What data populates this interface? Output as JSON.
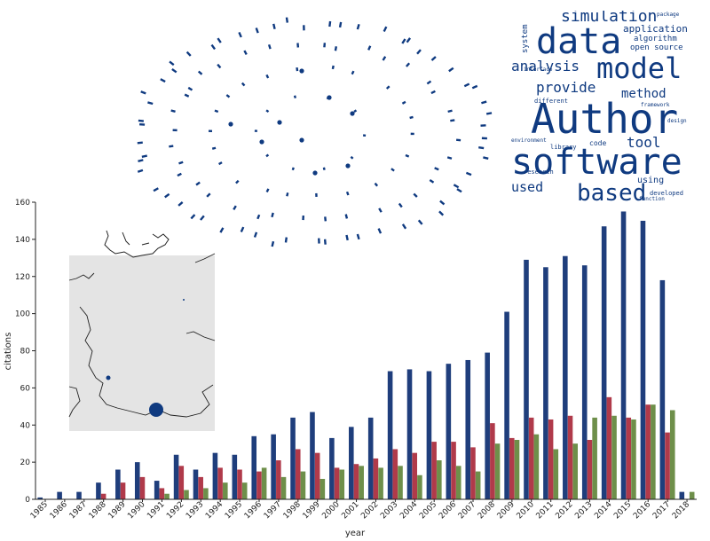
{
  "chart_data": {
    "type": "bar",
    "xlabel": "year",
    "ylabel": "citations",
    "ylim": [
      0,
      160
    ],
    "yticks": [
      0,
      20,
      40,
      60,
      80,
      100,
      120,
      140,
      160
    ],
    "categories": [
      "1985",
      "1986",
      "1987",
      "1988",
      "1989",
      "1990",
      "1991",
      "1992",
      "1993",
      "1994",
      "1995",
      "1996",
      "1997",
      "1998",
      "1999",
      "2000",
      "2001",
      "2002",
      "2003",
      "2004",
      "2005",
      "2006",
      "2007",
      "2008",
      "2009",
      "2010",
      "2011",
      "2012",
      "2013",
      "2014",
      "2015",
      "2016",
      "2017",
      "2018"
    ],
    "series": [
      {
        "color": "#1f3e7c",
        "values": [
          1,
          4,
          4,
          9,
          16,
          20,
          10,
          24,
          16,
          25,
          24,
          34,
          35,
          44,
          47,
          33,
          39,
          44,
          69,
          70,
          69,
          73,
          75,
          79,
          101,
          129,
          125,
          131,
          126,
          147,
          155,
          150,
          118,
          4
        ]
      },
      {
        "color": "#b03a4a",
        "values": [
          0,
          0,
          0,
          3,
          9,
          12,
          6,
          18,
          12,
          17,
          16,
          15,
          21,
          27,
          25,
          17,
          19,
          22,
          27,
          25,
          31,
          31,
          28,
          41,
          33,
          44,
          43,
          45,
          32,
          55,
          44,
          51,
          36,
          0
        ]
      },
      {
        "color": "#6e8f4a",
        "values": [
          0,
          0,
          0,
          0,
          0,
          0,
          3,
          5,
          6,
          9,
          9,
          17,
          12,
          15,
          11,
          16,
          18,
          17,
          18,
          13,
          21,
          18,
          15,
          30,
          32,
          35,
          27,
          30,
          44,
          45,
          43,
          51,
          48,
          4
        ]
      }
    ],
    "grid": false,
    "legend": "none"
  },
  "wordcloud": {
    "words": [
      {
        "text": "Author",
        "size": 46,
        "pos": "big"
      },
      {
        "text": "software",
        "size": 40
      },
      {
        "text": "data",
        "size": 40
      },
      {
        "text": "model",
        "size": 32
      },
      {
        "text": "based",
        "size": 26
      },
      {
        "text": "simulation",
        "size": 18
      },
      {
        "text": "analysis",
        "size": 16
      },
      {
        "text": "provide",
        "size": 16
      },
      {
        "text": "method",
        "size": 14
      },
      {
        "text": "tool",
        "size": 16
      },
      {
        "text": "used",
        "size": 15
      },
      {
        "text": "application",
        "size": 11
      },
      {
        "text": "algorithm",
        "size": 9
      },
      {
        "text": "open source",
        "size": 9
      },
      {
        "text": "using",
        "size": 10
      },
      {
        "text": "system",
        "size": 9
      },
      {
        "text": "code",
        "size": 8
      },
      {
        "text": "library",
        "size": 7
      },
      {
        "text": "different",
        "size": 7
      },
      {
        "text": "research",
        "size": 7
      },
      {
        "text": "developed",
        "size": 7
      },
      {
        "text": "interface",
        "size": 6
      },
      {
        "text": "environment",
        "size": 6
      },
      {
        "text": "framework",
        "size": 6
      },
      {
        "text": "design",
        "size": 6
      },
      {
        "text": "function",
        "size": 6
      },
      {
        "text": "package",
        "size": 6
      }
    ]
  },
  "colors": {
    "navy": "#1f3e7c",
    "red": "#b03a4a",
    "green": "#6e8f4a",
    "map_fill": "#e4e4e4",
    "map_dot": "#0f3a80"
  }
}
